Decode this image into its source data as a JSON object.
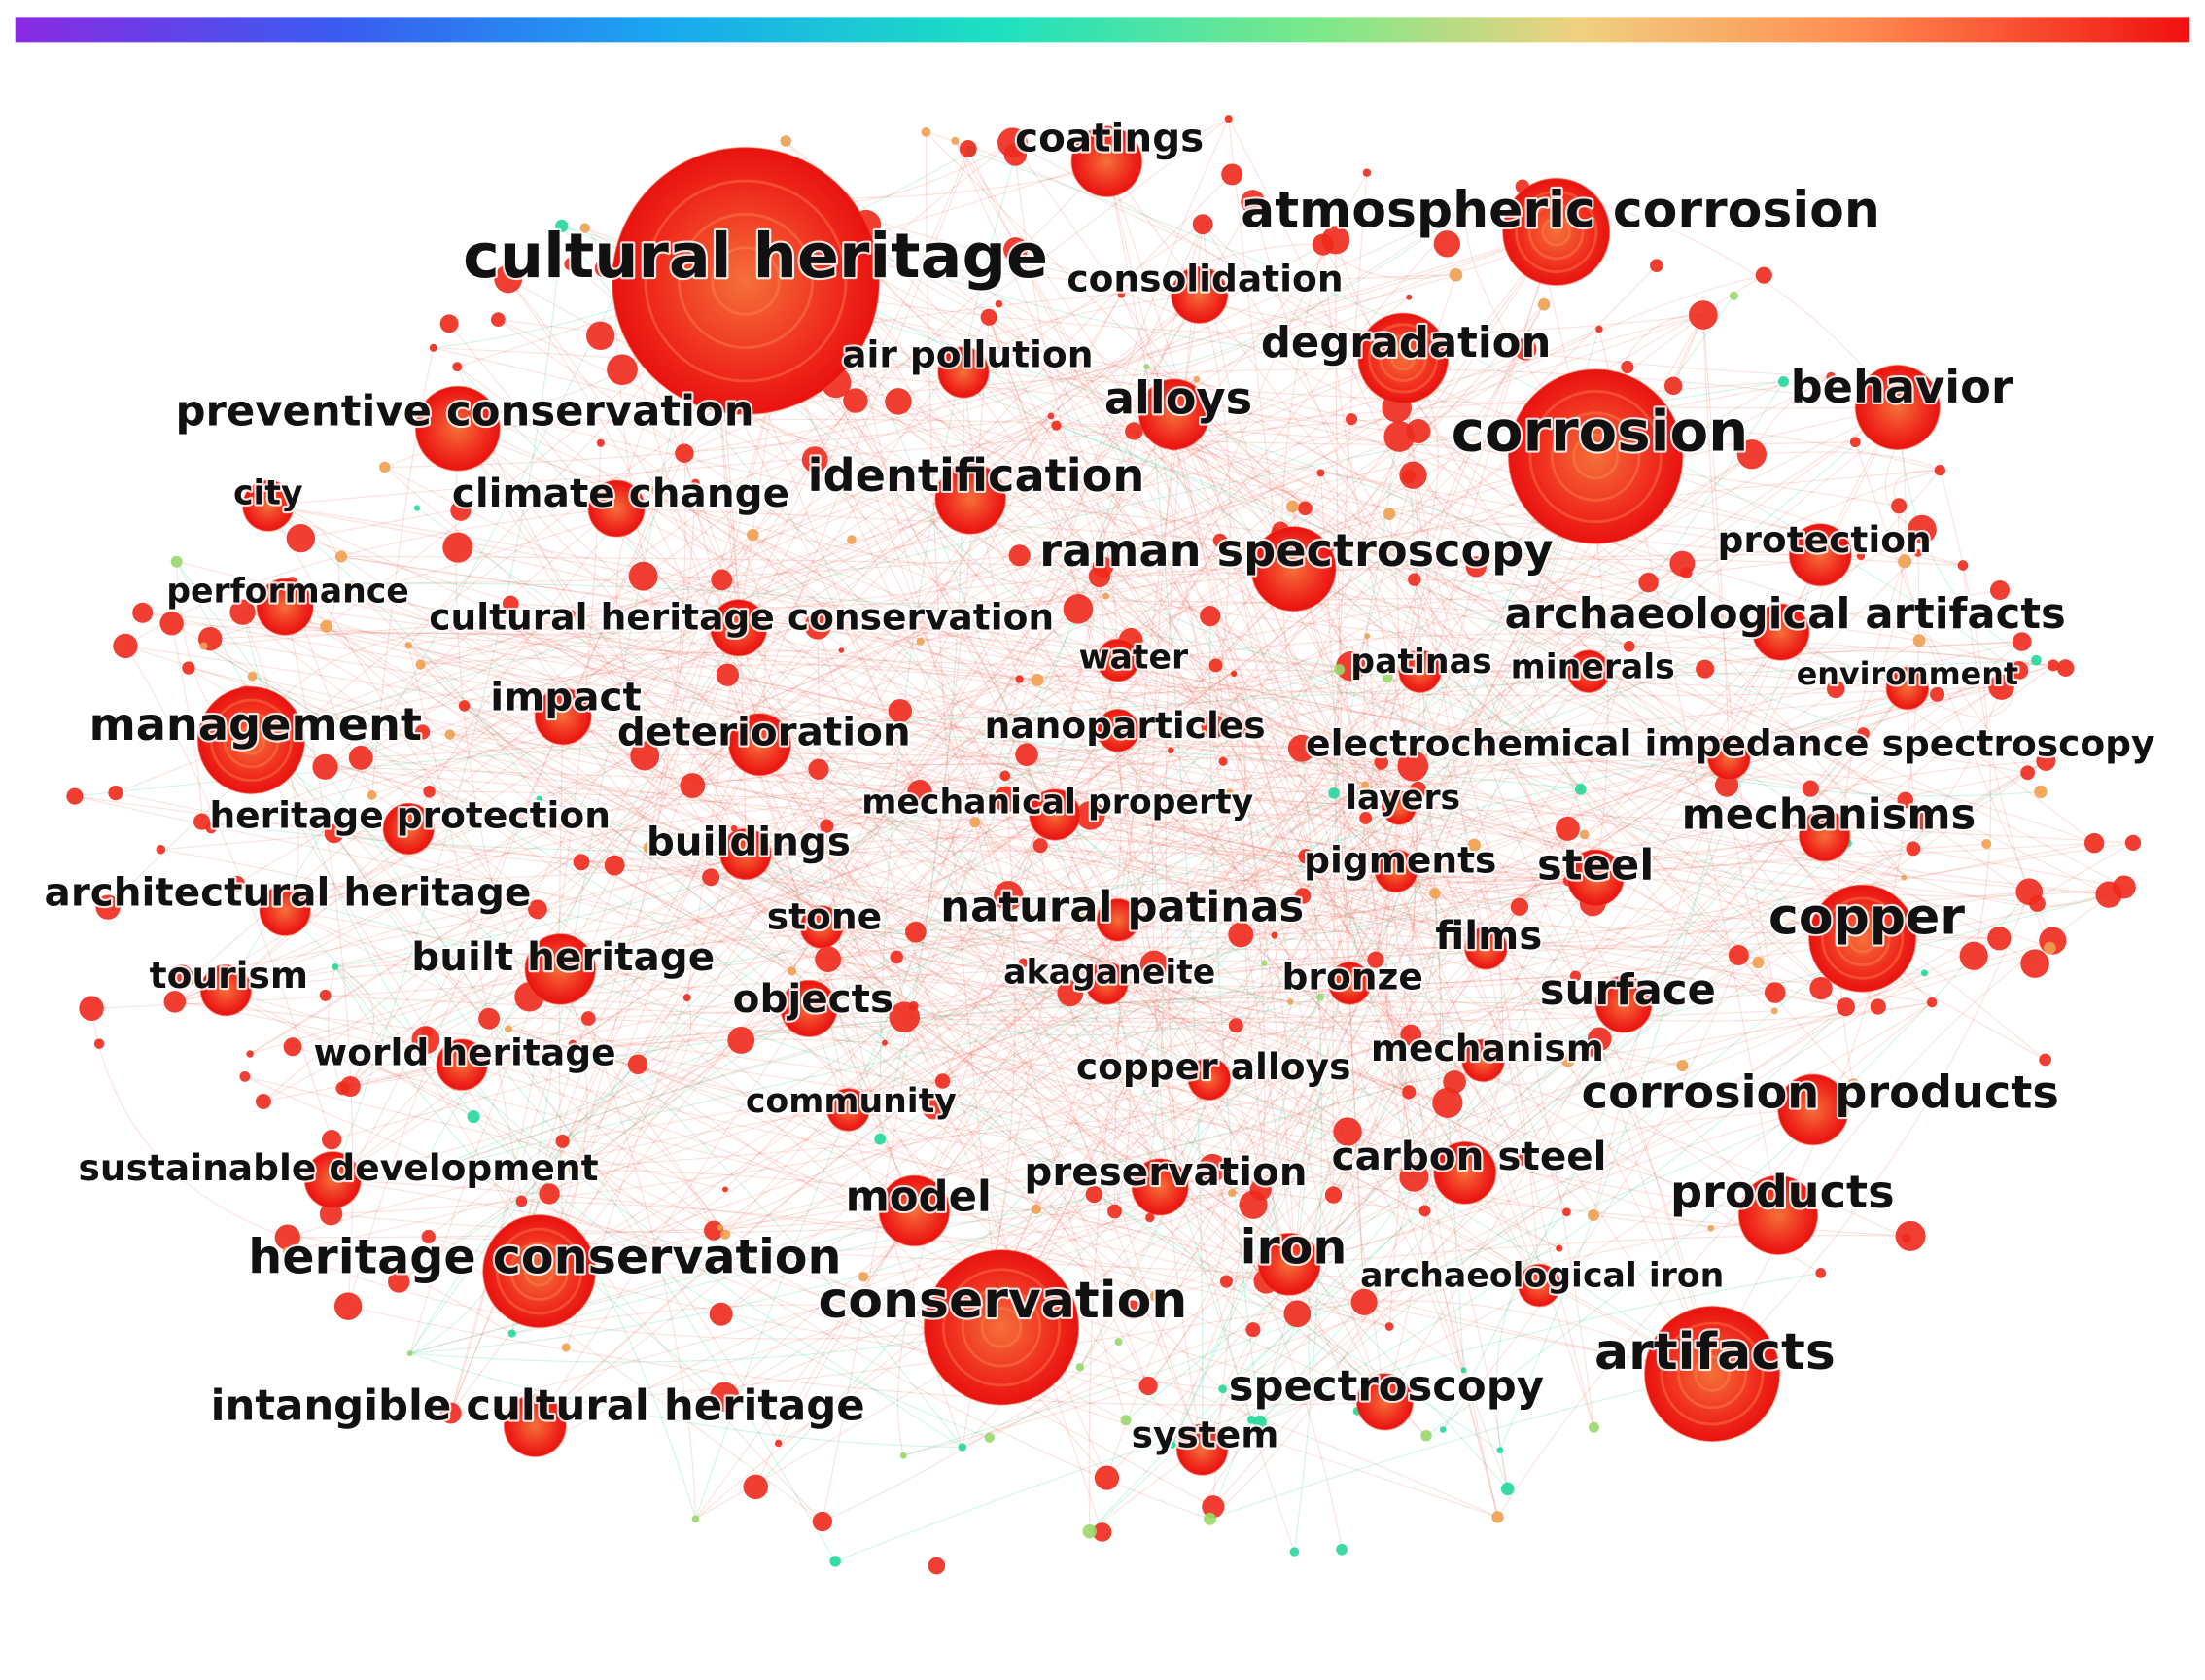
{
  "nodes": [
    {
      "label": "cultural heritage"
    },
    {
      "label": "coatings"
    },
    {
      "label": "atmospheric corrosion"
    },
    {
      "label": "consolidation"
    },
    {
      "label": "air pollution"
    },
    {
      "label": "degradation"
    },
    {
      "label": "alloys"
    },
    {
      "label": "corrosion"
    },
    {
      "label": "behavior"
    },
    {
      "label": "preventive conservation"
    },
    {
      "label": "city"
    },
    {
      "label": "climate change"
    },
    {
      "label": "identification"
    },
    {
      "label": "raman spectroscopy"
    },
    {
      "label": "protection"
    },
    {
      "label": "performance"
    },
    {
      "label": "cultural heritage conservation"
    },
    {
      "label": "archaeological artifacts"
    },
    {
      "label": "water"
    },
    {
      "label": "patinas"
    },
    {
      "label": "minerals"
    },
    {
      "label": "environment"
    },
    {
      "label": "management"
    },
    {
      "label": "impact"
    },
    {
      "label": "deterioration"
    },
    {
      "label": "nanoparticles"
    },
    {
      "label": "electrochemical impedance spectroscopy"
    },
    {
      "label": "heritage protection"
    },
    {
      "label": "mechanical property"
    },
    {
      "label": "layers"
    },
    {
      "label": "mechanisms"
    },
    {
      "label": "buildings"
    },
    {
      "label": "pigments"
    },
    {
      "label": "steel"
    },
    {
      "label": "architectural heritage"
    },
    {
      "label": "stone"
    },
    {
      "label": "natural patinas"
    },
    {
      "label": "copper"
    },
    {
      "label": "films"
    },
    {
      "label": "tourism"
    },
    {
      "label": "built heritage"
    },
    {
      "label": "akaganeite"
    },
    {
      "label": "bronze"
    },
    {
      "label": "surface"
    },
    {
      "label": "objects"
    },
    {
      "label": "world heritage"
    },
    {
      "label": "mechanism"
    },
    {
      "label": "copper alloys"
    },
    {
      "label": "community"
    },
    {
      "label": "corrosion products"
    },
    {
      "label": "sustainable development"
    },
    {
      "label": "carbon steel"
    },
    {
      "label": "preservation"
    },
    {
      "label": "model"
    },
    {
      "label": "products"
    },
    {
      "label": "heritage conservation"
    },
    {
      "label": "iron"
    },
    {
      "label": "conservation"
    },
    {
      "label": "archaeological iron"
    },
    {
      "label": "artifacts"
    },
    {
      "label": "spectroscopy"
    },
    {
      "label": "intangible cultural heritage"
    },
    {
      "label": "system"
    }
  ]
}
